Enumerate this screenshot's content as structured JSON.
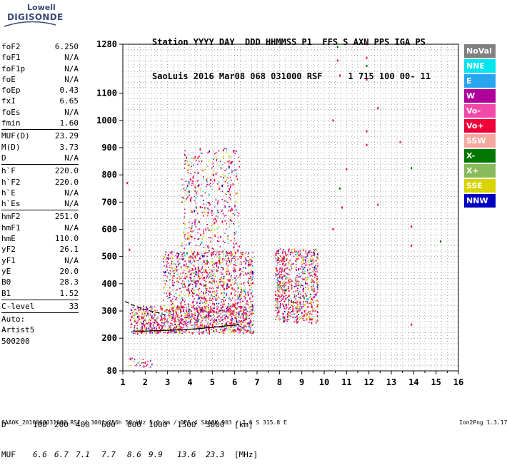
{
  "logo": {
    "line1": "Lowell",
    "line2": "DIGISONDE"
  },
  "header": {
    "row1": "Station YYYY DAY  DDD HHMMSS P1  FFS S AXN PPS IGA PS",
    "row2": "SaoLuis 2016 Mar08 068 031000 RSF     1 715 100 00- 11"
  },
  "parameters": {
    "group1": [
      {
        "name": "foF2",
        "value": "6.250"
      },
      {
        "name": "foF1",
        "value": "N/A"
      },
      {
        "name": "foF1p",
        "value": "N/A"
      },
      {
        "name": "foE",
        "value": "N/A"
      },
      {
        "name": "foEp",
        "value": "0.43"
      },
      {
        "name": "fxI",
        "value": "6.65"
      },
      {
        "name": "foEs",
        "value": "N/A"
      },
      {
        "name": "fmin",
        "value": "1.60"
      }
    ],
    "group2": [
      {
        "name": "MUF(D)",
        "value": "23.29"
      },
      {
        "name": "M(D)",
        "value": "3.73"
      },
      {
        "name": "D",
        "value": "N/A"
      }
    ],
    "group3": [
      {
        "name": "h`F",
        "value": "220.0"
      },
      {
        "name": "h`F2",
        "value": "220.0"
      },
      {
        "name": "h`E",
        "value": "N/A"
      },
      {
        "name": "h`Es",
        "value": "N/A"
      }
    ],
    "group4": [
      {
        "name": "hmF2",
        "value": "251.0"
      },
      {
        "name": "hmF1",
        "value": "N/A"
      },
      {
        "name": "hmE",
        "value": "110.0"
      },
      {
        "name": "yF2",
        "value": "26.1"
      },
      {
        "name": "yF1",
        "value": "N/A"
      },
      {
        "name": "yE",
        "value": "20.0"
      },
      {
        "name": "B0",
        "value": "28.3"
      },
      {
        "name": "B1",
        "value": "1.52"
      }
    ],
    "group5": [
      {
        "name": "C-level",
        "value": "33"
      }
    ]
  },
  "scaler": {
    "line1": "Auto:",
    "line2": "Artist5",
    "line3": "500200"
  },
  "legend": [
    {
      "label": "NoVal",
      "color": "#808080"
    },
    {
      "label": "NNE",
      "color": "#00e5f0"
    },
    {
      "label": "E",
      "color": "#2aa6f0"
    },
    {
      "label": "W",
      "color": "#b0009c"
    },
    {
      "label": "Vo-",
      "color": "#f24aa8"
    },
    {
      "label": "Vo+",
      "color": "#f00038"
    },
    {
      "label": "SSW",
      "color": "#f6a8a0"
    },
    {
      "label": "X-",
      "color": "#007800"
    },
    {
      "label": "X+",
      "color": "#88bc5a"
    },
    {
      "label": "SSE",
      "color": "#d8d400"
    },
    {
      "label": "NNW",
      "color": "#0000c0"
    }
  ],
  "d_table": {
    "d_label": "D",
    "d_values": [
      "100",
      "200",
      "400",
      "600",
      "800",
      "1000",
      "1500",
      "3000"
    ],
    "d_unit": "[km]",
    "muf_label": "MUF",
    "muf_values": [
      "6.6",
      "6.7",
      "7.1",
      "7.7",
      "8.6",
      "9.9",
      "13.6",
      "23.3"
    ],
    "muf_unit": "[MHz]"
  },
  "footer": "SAA0K_2016068031000.RSF / 300fx256h 50 kHz 5.0 km / DPS-4 SAA0K 903 / 2.6 S 315.8 E",
  "version": "Ion2Png 1.3.17",
  "chart_data": {
    "type": "scatter",
    "title": "",
    "xlabel": "",
    "ylabel": "",
    "xlim": [
      1,
      16
    ],
    "ylim": [
      80,
      1280
    ],
    "x_ticks": [
      1,
      2,
      3,
      4,
      5,
      6,
      7,
      8,
      9,
      10,
      11,
      12,
      13,
      14,
      15,
      16
    ],
    "y_ticks": [
      80,
      200,
      300,
      400,
      500,
      600,
      700,
      800,
      900,
      1000,
      1100,
      1280
    ],
    "grid": true,
    "trace_lines": [
      {
        "name": "",
        "x": [
          1.5,
          2.0,
          2.5,
          3.0,
          3.5,
          4.0,
          4.5,
          5.0,
          5.5,
          6.0,
          6.2
        ],
        "y": [
          226,
          226,
          228,
          229,
          231,
          233,
          236,
          240,
          244,
          248,
          250
        ]
      },
      {
        "name": "",
        "x": [
          1.1,
          1.5,
          2.0,
          2.5,
          2.8,
          3.0
        ],
        "y": [
          335,
          320,
          305,
          295,
          288,
          285
        ]
      }
    ],
    "echo_clusters": [
      {
        "x": [
          1.3,
          6.8
        ],
        "y": [
          220,
          320
        ],
        "density": 0.9
      },
      {
        "x": [
          2.8,
          6.8
        ],
        "y": [
          300,
          520
        ],
        "density": 0.55
      },
      {
        "x": [
          3.6,
          6.2
        ],
        "y": [
          500,
          900
        ],
        "density": 0.2
      },
      {
        "x": [
          7.8,
          9.7
        ],
        "y": [
          260,
          530
        ],
        "density": 0.75
      },
      {
        "x": [
          1.3,
          2.3
        ],
        "y": [
          95,
          130
        ],
        "density": 0.5
      }
    ],
    "isolated_points": [
      {
        "x": 10.6,
        "y": 1270
      },
      {
        "x": 10.6,
        "y": 1220
      },
      {
        "x": 10.7,
        "y": 1165
      },
      {
        "x": 11.9,
        "y": 1280
      },
      {
        "x": 11.9,
        "y": 1230
      },
      {
        "x": 11.9,
        "y": 1200
      },
      {
        "x": 11.9,
        "y": 1150
      },
      {
        "x": 11.9,
        "y": 960
      },
      {
        "x": 11.9,
        "y": 910
      },
      {
        "x": 10.4,
        "y": 1000
      },
      {
        "x": 10.7,
        "y": 750
      },
      {
        "x": 10.8,
        "y": 680
      },
      {
        "x": 11.0,
        "y": 820
      },
      {
        "x": 12.4,
        "y": 1045
      },
      {
        "x": 13.4,
        "y": 920
      },
      {
        "x": 13.9,
        "y": 825
      },
      {
        "x": 13.9,
        "y": 610
      },
      {
        "x": 13.9,
        "y": 540
      },
      {
        "x": 13.9,
        "y": 250
      },
      {
        "x": 12.4,
        "y": 690
      },
      {
        "x": 15.2,
        "y": 555
      },
      {
        "x": 1.2,
        "y": 770
      },
      {
        "x": 1.3,
        "y": 525
      },
      {
        "x": 10.4,
        "y": 600
      }
    ]
  }
}
